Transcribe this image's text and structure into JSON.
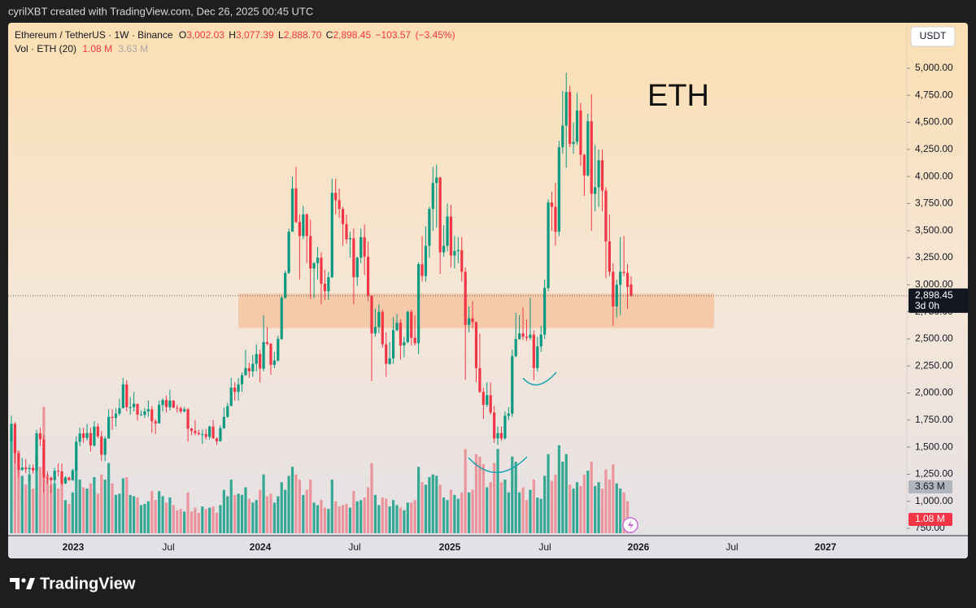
{
  "header": {
    "text": "cyrilXBT created with TradingView.com, Dec 26, 2025 00:45 UTC"
  },
  "footer": {
    "brand": "TradingView"
  },
  "chart_data": {
    "type": "candlestick",
    "symbol": "Ethereum / TetherUS · 1W · Binance",
    "currency": "USDT",
    "ohlc_legend": [
      {
        "key": "O",
        "value": 3002.03,
        "label": "3,002.03"
      },
      {
        "key": "H",
        "value": 3077.39,
        "label": "3,077.39"
      },
      {
        "key": "L",
        "value": 2888.7,
        "label": "2,888.70"
      },
      {
        "key": "C",
        "value": 2898.45,
        "label": "2,898.45"
      }
    ],
    "change": {
      "value": -103.57,
      "label": "−103.57"
    },
    "change_pct": {
      "value": -3.45,
      "label": "(−3.45%)"
    },
    "volume_legend": "Vol · ETH (20)",
    "volume_last": {
      "value": 1.08,
      "label": "1.08 M"
    },
    "volume_ma": {
      "value": 3.63,
      "label": "3.63 M"
    },
    "price_badge": {
      "value": 2898.45,
      "label": "2,898.45"
    },
    "countdown": "3d 0h",
    "annotation": "ETH",
    "zone": {
      "low": 2600,
      "high": 2920,
      "color": "#f5c4a2"
    },
    "up_color": "#089981",
    "down_color": "#f23645",
    "grid": false,
    "ylim": [
      690,
      5420
    ],
    "yticks": [
      {
        "value": 750,
        "label": "750.00"
      },
      {
        "value": 1000,
        "label": "1,000.00"
      },
      {
        "value": 1250,
        "label": "1,250.00"
      },
      {
        "value": 1500,
        "label": "1,500.00"
      },
      {
        "value": 1750,
        "label": "1,750.00"
      },
      {
        "value": 2000,
        "label": "2,000.00"
      },
      {
        "value": 2250,
        "label": "2,250.00"
      },
      {
        "value": 2500,
        "label": "2,500.00"
      },
      {
        "value": 2750,
        "label": "2,750.00"
      },
      {
        "value": 3000,
        "label": "3,000.00"
      },
      {
        "value": 3250,
        "label": "3,250.00"
      },
      {
        "value": 3500,
        "label": "3,500.00"
      },
      {
        "value": 3750,
        "label": "3,750.00"
      },
      {
        "value": 4000,
        "label": "4,000.00"
      },
      {
        "value": 4250,
        "label": "4,250.00"
      },
      {
        "value": 4500,
        "label": "4,500.00"
      },
      {
        "value": 4750,
        "label": "4,750.00"
      },
      {
        "value": 5000,
        "label": "5,000.00"
      }
    ],
    "vlim": [
      0,
      10
    ],
    "xtick_labels": [
      "2023",
      "Jul",
      "2024",
      "Jul",
      "2025",
      "Jul",
      "2026",
      "Jul",
      "2027"
    ],
    "candles": [
      [
        1555,
        1790,
        1550,
        1715
      ],
      [
        1715,
        1730,
        1350,
        1445
      ],
      [
        1445,
        1450,
        1220,
        1290
      ],
      [
        1290,
        1400,
        1280,
        1312
      ],
      [
        1312,
        1390,
        1260,
        1297
      ],
      [
        1297,
        1340,
        1190,
        1307
      ],
      [
        1307,
        1340,
        1255,
        1285
      ],
      [
        1285,
        1660,
        1270,
        1628
      ],
      [
        1628,
        1680,
        1510,
        1572
      ],
      [
        1572,
        1610,
        1075,
        1220
      ],
      [
        1220,
        1280,
        1160,
        1217
      ],
      [
        1217,
        1230,
        1075,
        1195
      ],
      [
        1195,
        1310,
        1160,
        1282
      ],
      [
        1282,
        1350,
        1230,
        1275
      ],
      [
        1275,
        1350,
        1150,
        1165
      ],
      [
        1165,
        1230,
        1160,
        1220
      ],
      [
        1220,
        1225,
        1190,
        1196
      ],
      [
        1196,
        1300,
        1190,
        1287
      ],
      [
        1287,
        1600,
        1280,
        1550
      ],
      [
        1550,
        1680,
        1510,
        1627
      ],
      [
        1627,
        1680,
        1540,
        1585
      ],
      [
        1585,
        1715,
        1560,
        1630
      ],
      [
        1630,
        1680,
        1460,
        1515
      ],
      [
        1515,
        1740,
        1505,
        1690
      ],
      [
        1690,
        1720,
        1580,
        1600
      ],
      [
        1600,
        1650,
        1370,
        1430
      ],
      [
        1430,
        1600,
        1370,
        1580
      ],
      [
        1580,
        1850,
        1580,
        1780
      ],
      [
        1780,
        1850,
        1660,
        1770
      ],
      [
        1770,
        1860,
        1690,
        1810
      ],
      [
        1810,
        1945,
        1790,
        1860
      ],
      [
        1860,
        2140,
        1860,
        2080
      ],
      [
        2080,
        2120,
        1830,
        1870
      ],
      [
        1870,
        1960,
        1800,
        1870
      ],
      [
        1870,
        2010,
        1830,
        1900
      ],
      [
        1900,
        1900,
        1745,
        1800
      ],
      [
        1800,
        1840,
        1790,
        1800
      ],
      [
        1800,
        1860,
        1770,
        1830
      ],
      [
        1830,
        1930,
        1780,
        1850
      ],
      [
        1850,
        1880,
        1630,
        1740
      ],
      [
        1740,
        1760,
        1620,
        1720
      ],
      [
        1720,
        1930,
        1720,
        1890
      ],
      [
        1890,
        1950,
        1830,
        1935
      ],
      [
        1935,
        1975,
        1820,
        1870
      ],
      [
        1870,
        2030,
        1840,
        1930
      ],
      [
        1930,
        1935,
        1860,
        1865
      ],
      [
        1865,
        1890,
        1820,
        1860
      ],
      [
        1860,
        1875,
        1810,
        1830
      ],
      [
        1830,
        1870,
        1820,
        1850
      ],
      [
        1850,
        1860,
        1550,
        1670
      ],
      [
        1670,
        1680,
        1610,
        1650
      ],
      [
        1650,
        1750,
        1610,
        1630
      ],
      [
        1630,
        1660,
        1610,
        1620
      ],
      [
        1620,
        1660,
        1530,
        1620
      ],
      [
        1620,
        1670,
        1570,
        1595
      ],
      [
        1595,
        1700,
        1570,
        1690
      ],
      [
        1690,
        1750,
        1620,
        1580
      ],
      [
        1580,
        1590,
        1520,
        1555
      ],
      [
        1555,
        1700,
        1550,
        1675
      ],
      [
        1675,
        1865,
        1670,
        1780
      ],
      [
        1780,
        1910,
        1770,
        1880
      ],
      [
        1880,
        2140,
        1880,
        2050
      ],
      [
        2050,
        2100,
        1930,
        2010
      ],
      [
        2010,
        2140,
        1930,
        2080
      ],
      [
        2080,
        2190,
        2010,
        2165
      ],
      [
        2165,
        2400,
        2160,
        2230
      ],
      [
        2230,
        2280,
        2140,
        2200
      ],
      [
        2200,
        2350,
        2150,
        2270
      ],
      [
        2270,
        2450,
        2200,
        2360
      ],
      [
        2360,
        2400,
        2100,
        2225
      ],
      [
        2225,
        2720,
        2200,
        2470
      ],
      [
        2470,
        2610,
        2440,
        2455
      ],
      [
        2455,
        2460,
        2170,
        2260
      ],
      [
        2260,
        2380,
        2230,
        2300
      ],
      [
        2300,
        2530,
        2290,
        2500
      ],
      [
        2500,
        2900,
        2490,
        2880
      ],
      [
        2880,
        3130,
        2870,
        3110
      ],
      [
        3110,
        3520,
        3100,
        3490
      ],
      [
        3490,
        4000,
        3490,
        3890
      ],
      [
        3890,
        4090,
        3570,
        3580
      ],
      [
        3580,
        3650,
        3050,
        3450
      ],
      [
        3450,
        3730,
        3420,
        3650
      ],
      [
        3650,
        3660,
        3200,
        3450
      ],
      [
        3450,
        3600,
        2870,
        3150
      ],
      [
        3150,
        3210,
        2880,
        3200
      ],
      [
        3200,
        3350,
        3050,
        3250
      ],
      [
        3250,
        3300,
        2820,
        3010
      ],
      [
        3010,
        3140,
        2860,
        2940
      ],
      [
        2940,
        3120,
        2860,
        3070
      ],
      [
        3070,
        3980,
        3060,
        3850
      ],
      [
        3850,
        3980,
        3650,
        3780
      ],
      [
        3780,
        3890,
        3620,
        3700
      ],
      [
        3700,
        3720,
        3360,
        3560
      ],
      [
        3560,
        3650,
        3380,
        3420
      ],
      [
        3420,
        3490,
        3250,
        3430
      ],
      [
        3430,
        3520,
        2820,
        3070
      ],
      [
        3070,
        3260,
        2990,
        3250
      ],
      [
        3250,
        3520,
        3200,
        3440
      ],
      [
        3440,
        3560,
        3090,
        3260
      ],
      [
        3260,
        3400,
        2850,
        2900
      ],
      [
        2900,
        2900,
        2110,
        2550
      ],
      [
        2550,
        2780,
        2520,
        2610
      ],
      [
        2610,
        2820,
        2550,
        2750
      ],
      [
        2750,
        2770,
        2420,
        2450
      ],
      [
        2450,
        2560,
        2150,
        2270
      ],
      [
        2270,
        2470,
        2260,
        2320
      ],
      [
        2320,
        2700,
        2270,
        2580
      ],
      [
        2580,
        2730,
        2570,
        2650
      ],
      [
        2650,
        2680,
        2310,
        2440
      ],
      [
        2440,
        2520,
        2330,
        2470
      ],
      [
        2470,
        2760,
        2460,
        2750
      ],
      [
        2750,
        2770,
        2440,
        2510
      ],
      [
        2510,
        2720,
        2440,
        2460
      ],
      [
        2460,
        3210,
        2360,
        3190
      ],
      [
        3190,
        3450,
        3030,
        3080
      ],
      [
        3080,
        3540,
        3030,
        3360
      ],
      [
        3360,
        3720,
        3250,
        3700
      ],
      [
        3700,
        4090,
        3500,
        3940
      ],
      [
        3940,
        4110,
        3530,
        3990
      ],
      [
        3990,
        4000,
        3100,
        3300
      ],
      [
        3300,
        3550,
        3260,
        3360
      ],
      [
        3360,
        3750,
        3310,
        3630
      ],
      [
        3630,
        3740,
        3160,
        3270
      ],
      [
        3270,
        3450,
        3150,
        3310
      ],
      [
        3310,
        3440,
        3200,
        3320
      ],
      [
        3320,
        3440,
        3030,
        3120
      ],
      [
        3120,
        3160,
        2120,
        2630
      ],
      [
        2630,
        2800,
        2560,
        2690
      ],
      [
        2690,
        2850,
        2600,
        2655
      ],
      [
        2655,
        2660,
        2100,
        2230
      ],
      [
        2230,
        2550,
        2000,
        2010
      ],
      [
        2010,
        2050,
        1760,
        1890
      ],
      [
        1890,
        2100,
        1870,
        1980
      ],
      [
        1980,
        2100,
        1800,
        1820
      ],
      [
        1820,
        1880,
        1540,
        1580
      ],
      [
        1580,
        1690,
        1520,
        1630
      ],
      [
        1630,
        1690,
        1560,
        1580
      ],
      [
        1580,
        1830,
        1570,
        1790
      ],
      [
        1790,
        1870,
        1750,
        1810
      ],
      [
        1810,
        2400,
        1780,
        2340
      ],
      [
        2340,
        2740,
        2330,
        2500
      ],
      [
        2500,
        2720,
        2490,
        2550
      ],
      [
        2550,
        2790,
        2490,
        2520
      ],
      [
        2520,
        2680,
        2480,
        2510
      ],
      [
        2510,
        2880,
        2490,
        2540
      ],
      [
        2540,
        2580,
        2120,
        2230
      ],
      [
        2230,
        2520,
        2200,
        2430
      ],
      [
        2430,
        2620,
        2380,
        2540
      ],
      [
        2540,
        3050,
        2500,
        2970
      ],
      [
        2970,
        3790,
        2940,
        3760
      ],
      [
        3760,
        3860,
        3500,
        3720
      ],
      [
        3720,
        3940,
        3360,
        3490
      ],
      [
        3490,
        4330,
        3450,
        4270
      ],
      [
        4270,
        4790,
        4210,
        4470
      ],
      [
        4470,
        4960,
        4080,
        4780
      ],
      [
        4780,
        4840,
        4270,
        4300
      ],
      [
        4300,
        4500,
        4210,
        4320
      ],
      [
        4320,
        4770,
        4290,
        4610
      ],
      [
        4610,
        4680,
        4100,
        4200
      ],
      [
        4200,
        4210,
        3820,
        4010
      ],
      [
        4010,
        4580,
        4000,
        4510
      ],
      [
        4510,
        4760,
        3500,
        3840
      ],
      [
        3840,
        4290,
        3680,
        3900
      ],
      [
        3900,
        4250,
        3720,
        4150
      ],
      [
        4150,
        4250,
        3680,
        3870
      ],
      [
        3870,
        3900,
        3060,
        3400
      ],
      [
        3400,
        3650,
        3080,
        3120
      ],
      [
        3120,
        3200,
        2620,
        2800
      ],
      [
        2800,
        3050,
        2700,
        3000
      ],
      [
        3000,
        3440,
        2720,
        3120
      ],
      [
        3120,
        3450,
        3080,
        3110
      ],
      [
        3110,
        3190,
        2780,
        2980
      ],
      [
        3002.03,
        3077.39,
        2888.7,
        2898.45
      ]
    ],
    "volumes": [
      7.5,
      8.0,
      6.5,
      4.5,
      3.8,
      4.6,
      3.5,
      6.0,
      5.2,
      9.9,
      4.6,
      3.8,
      3.9,
      3.5,
      4.2,
      2.6,
      2.3,
      3.2,
      5.5,
      4.2,
      3.6,
      3.5,
      3.9,
      4.4,
      3.1,
      4.6,
      4.2,
      5.5,
      3.9,
      3.0,
      3.1,
      4.3,
      4.4,
      3.0,
      2.9,
      2.8,
      2.2,
      2.3,
      2.5,
      3.3,
      2.6,
      3.3,
      2.9,
      2.4,
      2.8,
      2.2,
      1.8,
      1.9,
      1.7,
      3.2,
      1.7,
      2.0,
      1.6,
      2.1,
      1.9,
      2.0,
      2.1,
      1.6,
      2.2,
      3.4,
      2.9,
      4.2,
      3.0,
      3.1,
      3.0,
      3.6,
      2.7,
      2.4,
      2.6,
      3.4,
      4.6,
      2.9,
      3.1,
      2.4,
      2.9,
      4.0,
      3.4,
      4.5,
      5.2,
      4.6,
      4.2,
      3.0,
      3.4,
      4.2,
      2.4,
      2.2,
      2.6,
      2.0,
      1.9,
      4.2,
      2.5,
      2.1,
      2.2,
      2.3,
      2.0,
      3.3,
      2.5,
      2.6,
      2.8,
      3.6,
      5.5,
      3.0,
      2.2,
      2.8,
      2.7,
      2.1,
      2.6,
      2.2,
      2.0,
      1.8,
      2.4,
      2.4,
      2.6,
      5.2,
      4.0,
      3.8,
      4.4,
      4.6,
      4.5,
      3.8,
      2.8,
      2.6,
      3.4,
      3.0,
      2.7,
      3.2,
      6.6,
      3.2,
      3.4,
      6.2,
      6.0,
      5.4,
      3.6,
      4.0,
      5.5,
      6.6,
      4.0,
      4.2,
      3.2,
      6.0,
      5.6,
      3.2,
      3.6,
      2.6,
      3.4,
      4.2,
      2.8,
      2.7,
      4.5,
      6.2,
      4.1,
      4.6,
      6.9,
      5.6,
      6.2,
      3.8,
      3.5,
      4.0,
      3.7,
      4.6,
      4.9,
      5.6,
      3.7,
      4.0,
      3.5,
      5.0,
      4.2,
      5.4,
      3.9,
      3.5,
      3.2,
      2.5,
      1.08
    ]
  }
}
